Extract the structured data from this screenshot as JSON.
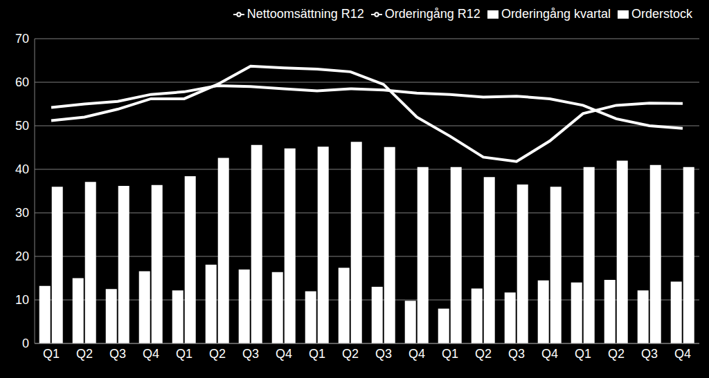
{
  "chart_data": {
    "type": "bar",
    "categories": [
      "Q1",
      "Q2",
      "Q3",
      "Q4",
      "Q1",
      "Q2",
      "Q3",
      "Q4",
      "Q1",
      "Q2",
      "Q3",
      "Q4",
      "Q1",
      "Q2",
      "Q3",
      "Q4",
      "Q1",
      "Q2",
      "Q3",
      "Q4"
    ],
    "series": [
      {
        "name": "Orderingång kvartal",
        "type": "bar",
        "color": "#ffffff",
        "values": [
          13.2,
          15,
          12.5,
          16.6,
          12.2,
          18.1,
          17,
          16.4,
          12,
          17.4,
          13,
          9.8,
          8,
          12.6,
          11.7,
          14.5,
          14,
          14.6,
          12.2,
          14.2
        ]
      },
      {
        "name": "Orderstock",
        "type": "bar",
        "color": "#ffffff",
        "values": [
          36,
          37.1,
          36.2,
          36.4,
          38.4,
          42.6,
          45.6,
          44.8,
          45.2,
          46.3,
          45.1,
          40.5,
          40.5,
          38.2,
          36.5,
          36,
          40.5,
          42,
          41,
          40.5
        ]
      },
      {
        "name": "Orderingång R12",
        "type": "line",
        "color": "#ffffff",
        "values": [
          51.2,
          52,
          53.8,
          56.2,
          56.2,
          59.5,
          63.7,
          63.3,
          63,
          62.4,
          59.5,
          52,
          47.6,
          42.8,
          41.8,
          46.5,
          52.8,
          54.7,
          55.2,
          55.1
        ]
      },
      {
        "name": "Nettoomsättning R12",
        "type": "line",
        "color": "#ffffff",
        "values": [
          54.2,
          55,
          55.6,
          57.2,
          57.8,
          59.2,
          59,
          58.5,
          58,
          58.5,
          58.2,
          57.5,
          57.2,
          56.6,
          56.8,
          56.2,
          54.7,
          51.6,
          50,
          49.4
        ]
      }
    ],
    "ylim": [
      0,
      70
    ],
    "yticks": [
      0,
      10,
      20,
      30,
      40,
      50,
      60,
      70
    ],
    "grid": true,
    "legend": "top"
  }
}
